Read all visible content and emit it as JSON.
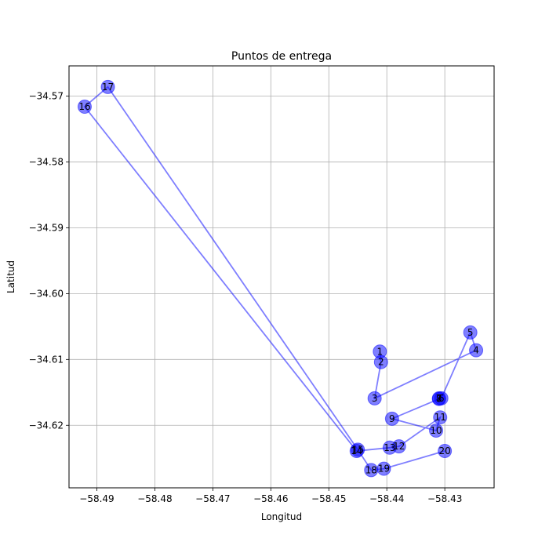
{
  "chart_data": {
    "type": "scatter",
    "title": "Puntos de entrega",
    "xlabel": "Longitud",
    "ylabel": "Latitud",
    "xlim": [
      -58.4948,
      -58.4215
    ],
    "ylim": [
      -34.6295,
      -34.5654
    ],
    "xticks": [
      -58.49,
      -58.48,
      -58.47,
      -58.46,
      -58.45,
      -58.44,
      -58.43
    ],
    "xtick_labels": [
      "−58.49",
      "−58.48",
      "−58.47",
      "−58.46",
      "−58.45",
      "−58.44",
      "−58.43"
    ],
    "yticks": [
      -34.57,
      -34.58,
      -34.59,
      -34.6,
      -34.61,
      -34.62
    ],
    "ytick_labels": [
      "−34.57",
      "−34.58",
      "−34.59",
      "−34.60",
      "−34.61",
      "−34.62"
    ],
    "grid": true,
    "color": "#0000ff",
    "route": [
      {
        "label": "1",
        "lon": -58.4412,
        "lat": -34.6088
      },
      {
        "label": "2",
        "lon": -58.441,
        "lat": -34.6104
      },
      {
        "label": "3",
        "lon": -58.4421,
        "lat": -34.6159
      },
      {
        "label": "4",
        "lon": -58.4246,
        "lat": -34.6086
      },
      {
        "label": "5",
        "lon": -58.4256,
        "lat": -34.6059
      },
      {
        "label": "6",
        "lon": -58.4306,
        "lat": -34.6159
      },
      {
        "label": "7",
        "lon": -58.431,
        "lat": -34.6159
      },
      {
        "label": "8",
        "lon": -58.431,
        "lat": -34.616
      },
      {
        "label": "9",
        "lon": -58.4391,
        "lat": -34.619
      },
      {
        "label": "10",
        "lon": -58.4315,
        "lat": -34.6208
      },
      {
        "label": "11",
        "lon": -58.4308,
        "lat": -34.6188
      },
      {
        "label": "12",
        "lon": -58.4379,
        "lat": -34.6232
      },
      {
        "label": "13",
        "lon": -58.4395,
        "lat": -34.6234
      },
      {
        "label": "14",
        "lon": -58.4452,
        "lat": -34.6239
      },
      {
        "label": "15",
        "lon": -58.445,
        "lat": -34.6237
      },
      {
        "label": "16",
        "lon": -58.4921,
        "lat": -34.5716
      },
      {
        "label": "17",
        "lon": -58.4881,
        "lat": -34.5686
      },
      {
        "label": "18",
        "lon": -58.4427,
        "lat": -34.6268
      },
      {
        "label": "19",
        "lon": -58.4405,
        "lat": -34.6266
      },
      {
        "label": "20",
        "lon": -58.43,
        "lat": -34.6239
      }
    ],
    "path_order": [
      "1",
      "2",
      "3",
      "4",
      "5",
      "6",
      "7",
      "8",
      "9",
      "10",
      "11",
      "12",
      "13",
      "14",
      "16",
      "17",
      "15",
      "18",
      "19",
      "20"
    ]
  }
}
